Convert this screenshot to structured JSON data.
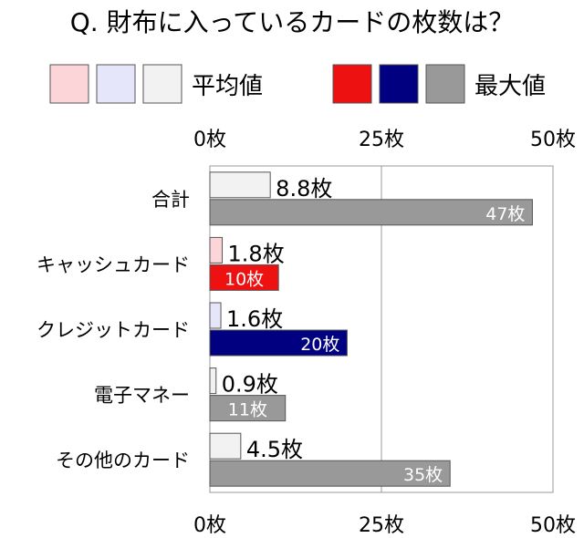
{
  "chart_data": {
    "type": "bar",
    "orientation": "horizontal",
    "title": "Q. 財布に入っているカードの枚数は？",
    "categories": [
      "合計",
      "キャッシュカード",
      "クレジットカード",
      "電子マネー",
      "その他のカード"
    ],
    "series": [
      {
        "name": "平均値",
        "values": [
          8.8,
          1.8,
          1.6,
          0.9,
          4.5
        ],
        "labels": [
          "8.8枚",
          "1.8枚",
          "1.6枚",
          "0.9枚",
          "4.5枚"
        ],
        "colors": [
          "#f2f2f2",
          "#fcd5d9",
          "#e6e6fb",
          "#f2f2f2",
          "#f2f2f2"
        ]
      },
      {
        "name": "最大値",
        "values": [
          47,
          10,
          20,
          11,
          35
        ],
        "labels": [
          "47枚",
          "10枚",
          "20枚",
          "11枚",
          "35枚"
        ],
        "colors": [
          "#999999",
          "#ee1111",
          "#000080",
          "#999999",
          "#999999"
        ]
      }
    ],
    "legend": {
      "position": "top",
      "groups": [
        {
          "label": "平均値",
          "swatches": [
            "#fcd5d9",
            "#e6e6fb",
            "#f2f2f2"
          ]
        },
        {
          "label": "最大値",
          "swatches": [
            "#ee1111",
            "#000080",
            "#999999"
          ]
        }
      ]
    },
    "xlim": [
      0,
      50
    ],
    "ticks": [
      0,
      25,
      50
    ],
    "tick_labels": [
      "0枚",
      "25枚",
      "50枚"
    ],
    "grid": true
  }
}
